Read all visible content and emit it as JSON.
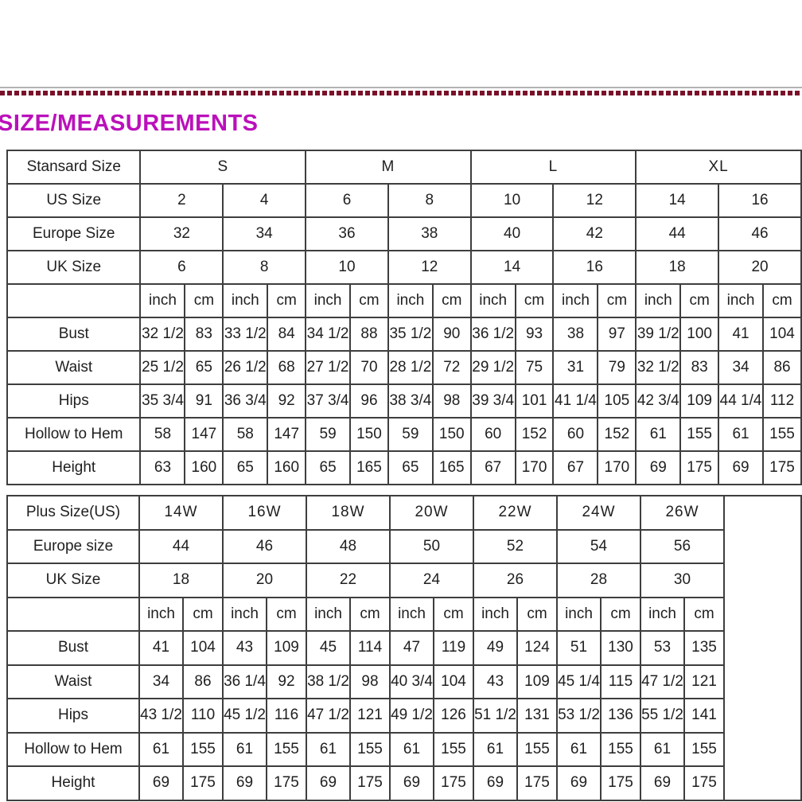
{
  "title": {
    "text": "SIZE/MEASUREMENTS",
    "color": "#bb10bb"
  },
  "divider": {
    "dash_color": "#7a1129",
    "thin_line_color": "#b3b3b3"
  },
  "standard_table": {
    "corner_label": "Stansard Size",
    "size_groups": [
      "S",
      "M",
      "L",
      "XL"
    ],
    "header_rows": [
      {
        "label": "US Size",
        "bold": true,
        "values": [
          "2",
          "4",
          "6",
          "8",
          "10",
          "12",
          "14",
          "16"
        ]
      },
      {
        "label": "Europe Size",
        "bold": false,
        "values": [
          "32",
          "34",
          "36",
          "38",
          "40",
          "42",
          "44",
          "46"
        ]
      },
      {
        "label": "UK Size",
        "bold": false,
        "values": [
          "6",
          "8",
          "10",
          "12",
          "14",
          "16",
          "18",
          "20"
        ]
      }
    ],
    "unit_labels": [
      "inch",
      "cm"
    ],
    "measurement_rows": [
      {
        "label": "Bust",
        "values": [
          "32 1/2",
          "83",
          "33 1/2",
          "84",
          "34 1/2",
          "88",
          "35 1/2",
          "90",
          "36 1/2",
          "93",
          "38",
          "97",
          "39 1/2",
          "100",
          "41",
          "104"
        ]
      },
      {
        "label": "Waist",
        "values": [
          "25 1/2",
          "65",
          "26 1/2",
          "68",
          "27 1/2",
          "70",
          "28 1/2",
          "72",
          "29 1/2",
          "75",
          "31",
          "79",
          "32 1/2",
          "83",
          "34",
          "86"
        ]
      },
      {
        "label": "Hips",
        "values": [
          "35 3/4",
          "91",
          "36 3/4",
          "92",
          "37 3/4",
          "96",
          "38 3/4",
          "98",
          "39 3/4",
          "101",
          "41 1/4",
          "105",
          "42 3/4",
          "109",
          "44 1/4",
          "112"
        ]
      },
      {
        "label": "Hollow to Hem",
        "values": [
          "58",
          "147",
          "58",
          "147",
          "59",
          "150",
          "59",
          "150",
          "60",
          "152",
          "60",
          "152",
          "61",
          "155",
          "61",
          "155"
        ]
      },
      {
        "label": "Height",
        "values": [
          "63",
          "160",
          "65",
          "160",
          "65",
          "165",
          "65",
          "165",
          "67",
          "170",
          "67",
          "170",
          "69",
          "175",
          "69",
          "175"
        ]
      }
    ],
    "trailing_empty_column": false
  },
  "plus_table": {
    "corner_label": "Plus Size(US)",
    "size_groups": [
      "14W",
      "16W",
      "18W",
      "20W",
      "22W",
      "24W",
      "26W"
    ],
    "header_rows": [
      {
        "label": "Europe size",
        "bold": false,
        "values": [
          "44",
          "46",
          "48",
          "50",
          "52",
          "54",
          "56"
        ]
      },
      {
        "label": "UK Size",
        "bold": false,
        "values": [
          "18",
          "20",
          "22",
          "24",
          "26",
          "28",
          "30"
        ]
      }
    ],
    "unit_labels": [
      "inch",
      "cm"
    ],
    "measurement_rows": [
      {
        "label": "Bust",
        "values": [
          "41",
          "104",
          "43",
          "109",
          "45",
          "114",
          "47",
          "119",
          "49",
          "124",
          "51",
          "130",
          "53",
          "135"
        ]
      },
      {
        "label": "Waist",
        "values": [
          "34",
          "86",
          "36 1/4",
          "92",
          "38 1/2",
          "98",
          "40 3/4",
          "104",
          "43",
          "109",
          "45 1/4",
          "115",
          "47 1/2",
          "121"
        ]
      },
      {
        "label": "Hips",
        "values": [
          "43 1/2",
          "110",
          "45 1/2",
          "116",
          "47 1/2",
          "121",
          "49 1/2",
          "126",
          "51 1/2",
          "131",
          "53 1/2",
          "136",
          "55 1/2",
          "141"
        ]
      },
      {
        "label": "Hollow to Hem",
        "values": [
          "61",
          "155",
          "61",
          "155",
          "61",
          "155",
          "61",
          "155",
          "61",
          "155",
          "61",
          "155",
          "61",
          "155"
        ]
      },
      {
        "label": "Height",
        "values": [
          "69",
          "175",
          "69",
          "175",
          "69",
          "175",
          "69",
          "175",
          "69",
          "175",
          "69",
          "175",
          "69",
          "175"
        ]
      }
    ],
    "trailing_empty_column": true
  }
}
